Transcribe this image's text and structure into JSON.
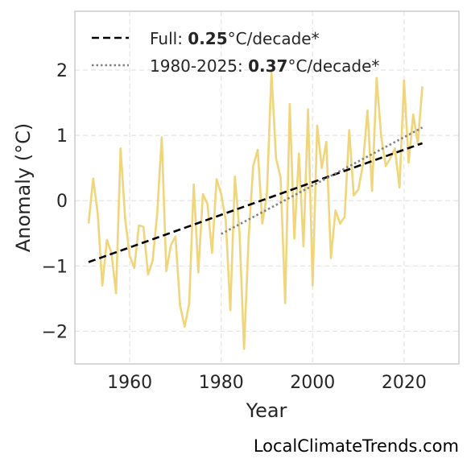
{
  "chart_data": {
    "type": "line",
    "xlabel": "Year",
    "ylabel": "Anomaly (°C)",
    "xlim": [
      1948,
      2032
    ],
    "ylim": [
      -2.5,
      2.9
    ],
    "xticks": [
      1960,
      1980,
      2000,
      2020
    ],
    "yticks": [
      -2,
      -1,
      0,
      1,
      2
    ],
    "ytick_labels": [
      "−2",
      "−1",
      "0",
      "1",
      "2"
    ],
    "grid": true,
    "legend_position": "top-left",
    "series": [
      {
        "kind": "anomaly",
        "color": "#f0d57a",
        "x": [
          1951,
          1952,
          1953,
          1954,
          1955,
          1956,
          1957,
          1958,
          1959,
          1960,
          1961,
          1962,
          1963,
          1964,
          1965,
          1966,
          1967,
          1968,
          1969,
          1970,
          1971,
          1972,
          1973,
          1974,
          1975,
          1976,
          1977,
          1978,
          1979,
          1980,
          1981,
          1982,
          1983,
          1984,
          1985,
          1986,
          1987,
          1988,
          1989,
          1990,
          1991,
          1992,
          1993,
          1994,
          1995,
          1996,
          1997,
          1998,
          1999,
          2000,
          2001,
          2002,
          2003,
          2004,
          2005,
          2006,
          2007,
          2008,
          2009,
          2010,
          2011,
          2012,
          2013,
          2014,
          2015,
          2016,
          2017,
          2018,
          2019,
          2020,
          2021,
          2022,
          2023,
          2024
        ],
        "values": [
          -0.35,
          0.34,
          -0.2,
          -1.3,
          -0.6,
          -0.8,
          -1.42,
          0.8,
          -0.28,
          -0.85,
          -1.03,
          -0.38,
          -0.4,
          -1.13,
          -0.92,
          -0.2,
          0.97,
          -1.08,
          -0.68,
          -0.55,
          -1.6,
          -1.93,
          -1.58,
          0.25,
          -1.1,
          0.1,
          -0.05,
          -0.8,
          0.33,
          0.1,
          -0.3,
          -1.68,
          0.37,
          -0.48,
          -2.27,
          -0.58,
          0.53,
          0.78,
          -0.35,
          0.1,
          1.97,
          0.65,
          0.35,
          -1.57,
          1.48,
          -0.58,
          0.72,
          -0.7,
          1.4,
          -1.3,
          1.15,
          0.5,
          0.9,
          -0.88,
          -0.15,
          -0.35,
          -0.25,
          1.08,
          0.08,
          0.17,
          0.55,
          1.38,
          0.15,
          1.88,
          0.98,
          0.53,
          0.65,
          0.8,
          0.2,
          1.84,
          0.58,
          1.32,
          0.88,
          1.75
        ]
      },
      {
        "kind": "trend-full",
        "color": "#000000",
        "x": [
          1951,
          2024
        ],
        "values": [
          -0.94,
          0.88
        ]
      },
      {
        "kind": "trend-1980",
        "color": "#808080",
        "x": [
          1980,
          2024
        ],
        "values": [
          -0.51,
          1.12
        ]
      }
    ]
  },
  "legend": {
    "full": {
      "prefix": "Full: ",
      "value": "0.25",
      "suffix": "°C/decade*"
    },
    "recent": {
      "prefix": "1980-2025: ",
      "value": "0.37",
      "suffix": "°C/decade*"
    }
  },
  "credit": "LocalClimateTrends.com"
}
